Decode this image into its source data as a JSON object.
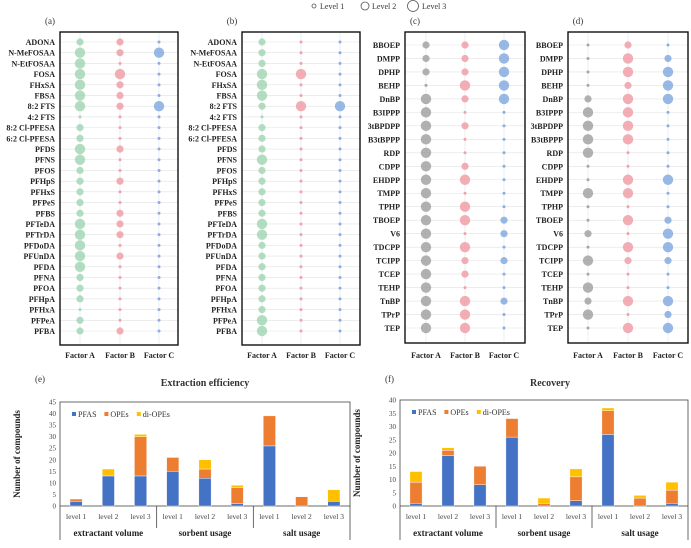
{
  "legend": {
    "level1": "Level 1",
    "level2": "Level 2",
    "level3": "Level 3"
  },
  "colors": {
    "factorA_pfas": "#9fd5b0",
    "factorA_ope": "#9e9e9e",
    "factorB": "#f09aa2",
    "factorC": "#7ea6de",
    "PFAS": "#4472c4",
    "OPEs": "#ed7d31",
    "di-OPEs": "#ffc000"
  },
  "chart_data": [
    {
      "type": "scatter",
      "panel": "(a)",
      "subtype": "bubble",
      "factors": [
        "Factor A",
        "Factor B",
        "Factor C"
      ],
      "compounds": [
        "ADONA",
        "N-MeFOSAA",
        "N-EtFOSAA",
        "FOSA",
        "FHxSA",
        "FBSA",
        "8:2 FTS",
        "4:2 FTS",
        "8:2 Cl-PFESA",
        "6:2 Cl-PFESA",
        "PFDS",
        "PFNS",
        "PFOS",
        "PFHpS",
        "PFHxS",
        "PFPeS",
        "PFBS",
        "PFTeDA",
        "PFTrDA",
        "PFDoDA",
        "PFUnDA",
        "PFDA",
        "PFNA",
        "PFOA",
        "PFHpA",
        "PFHxA",
        "PFPeA",
        "PFBA"
      ],
      "levels": {
        "Factor A": [
          2,
          3,
          3,
          3,
          3,
          3,
          3,
          1,
          2,
          2,
          3,
          3,
          2,
          2,
          2,
          2,
          2,
          3,
          3,
          3,
          3,
          3,
          2,
          2,
          2,
          1,
          2,
          2
        ],
        "Factor B": [
          2,
          2,
          1,
          3,
          2,
          2,
          2,
          1,
          1,
          1,
          2,
          1,
          1,
          2,
          1,
          1,
          2,
          2,
          2,
          1,
          2,
          1,
          1,
          1,
          1,
          1,
          1,
          2
        ],
        "Factor C": [
          1,
          3,
          1,
          1,
          1,
          1,
          3,
          1,
          1,
          1,
          1,
          1,
          1,
          1,
          1,
          1,
          1,
          1,
          1,
          1,
          1,
          1,
          1,
          1,
          1,
          1,
          1,
          1
        ]
      }
    },
    {
      "type": "scatter",
      "panel": "(b)",
      "subtype": "bubble",
      "factors": [
        "Factor A",
        "Factor B",
        "Factor C"
      ],
      "compounds": [
        "ADONA",
        "N-MeFOSAA",
        "N-EtFOSAA",
        "FOSA",
        "FHxSA",
        "FBSA",
        "8:2 FTS",
        "4:2 FTS",
        "8:2 Cl-PFESA",
        "6:2 Cl-PFESA",
        "PFDS",
        "PFNS",
        "PFOS",
        "PFHpS",
        "PFHxS",
        "PFPeS",
        "PFBS",
        "PFTeDA",
        "PFTrDA",
        "PFDoDA",
        "PFUnDA",
        "PFDA",
        "PFNA",
        "PFOA",
        "PFHpA",
        "PFHxA",
        "PFPeA",
        "PFBA"
      ],
      "levels": {
        "Factor A": [
          2,
          2,
          2,
          3,
          3,
          3,
          2,
          1,
          2,
          2,
          2,
          3,
          2,
          2,
          2,
          2,
          2,
          3,
          3,
          2,
          2,
          2,
          2,
          2,
          2,
          2,
          3,
          3
        ],
        "Factor B": [
          1,
          1,
          1,
          3,
          1,
          1,
          3,
          1,
          1,
          1,
          1,
          1,
          1,
          1,
          1,
          1,
          1,
          1,
          1,
          1,
          1,
          1,
          1,
          1,
          1,
          1,
          1,
          1
        ],
        "Factor C": [
          1,
          1,
          1,
          1,
          1,
          1,
          3,
          1,
          1,
          1,
          1,
          1,
          1,
          1,
          1,
          1,
          1,
          1,
          1,
          1,
          1,
          1,
          1,
          1,
          1,
          1,
          1,
          1
        ]
      }
    },
    {
      "type": "scatter",
      "panel": "(c)",
      "subtype": "bubble",
      "factors": [
        "Factor A",
        "Factor B",
        "Factor C"
      ],
      "compounds": [
        "BBOEP",
        "DMPP",
        "DPHP",
        "BEHP",
        "DnBP",
        "B3IPPP",
        "3tBPDPP",
        "B3tBPPP",
        "RDP",
        "CDPP",
        "EHDPP",
        "TMPP",
        "TPHP",
        "TBOEP",
        "V6",
        "TDCPP",
        "TCIPP",
        "TCEP",
        "TEHP",
        "TnBP",
        "TPrP",
        "TEP"
      ],
      "levels": {
        "Factor A": [
          2,
          2,
          2,
          1,
          3,
          3,
          3,
          3,
          3,
          3,
          3,
          3,
          3,
          3,
          3,
          3,
          3,
          3,
          3,
          3,
          3,
          3
        ],
        "Factor B": [
          2,
          2,
          2,
          3,
          2,
          1,
          2,
          1,
          1,
          2,
          3,
          1,
          3,
          3,
          1,
          3,
          2,
          2,
          1,
          3,
          3,
          3
        ],
        "Factor C": [
          3,
          3,
          3,
          3,
          3,
          1,
          1,
          1,
          1,
          1,
          1,
          1,
          1,
          2,
          2,
          1,
          2,
          1,
          1,
          2,
          1,
          1
        ]
      }
    },
    {
      "type": "scatter",
      "panel": "(d)",
      "subtype": "bubble",
      "factors": [
        "Factor A",
        "Factor B",
        "Factor C"
      ],
      "compounds": [
        "BBOEP",
        "DMPP",
        "DPHP",
        "BEHP",
        "DnBP",
        "B3IPPP",
        "3tBPDPP",
        "B3tBPPP",
        "RDP",
        "CDPP",
        "EHDPP",
        "TMPP",
        "TPHP",
        "TBOEP",
        "V6",
        "TDCPP",
        "TCIPP",
        "TCEP",
        "TEHP",
        "TnBP",
        "TPrP",
        "TEP"
      ],
      "levels": {
        "Factor A": [
          1,
          1,
          1,
          1,
          2,
          3,
          3,
          3,
          3,
          1,
          1,
          3,
          1,
          1,
          2,
          1,
          3,
          1,
          3,
          2,
          3,
          1
        ],
        "Factor B": [
          2,
          3,
          3,
          2,
          3,
          3,
          3,
          3,
          1,
          1,
          3,
          3,
          1,
          3,
          1,
          3,
          2,
          1,
          1,
          3,
          1,
          3
        ],
        "Factor C": [
          1,
          2,
          3,
          3,
          3,
          1,
          1,
          1,
          1,
          1,
          3,
          1,
          1,
          2,
          3,
          3,
          2,
          1,
          1,
          3,
          2,
          3
        ]
      }
    },
    {
      "type": "bar",
      "panel": "(e)",
      "stacked": true,
      "title": "Extraction efficiency",
      "ylabel": "Number of compounds",
      "ylim": [
        0,
        45
      ],
      "yticks": [
        0,
        5,
        10,
        15,
        20,
        25,
        30,
        35,
        40,
        45
      ],
      "groups": [
        "extractant volume",
        "sorbent usage",
        "salt usage"
      ],
      "categories": [
        "level 1",
        "level 2",
        "level 3",
        "level 1",
        "level 2",
        "level 3",
        "level 1",
        "level 2",
        "level 3"
      ],
      "series": [
        {
          "name": "PFAS",
          "values": [
            2,
            13,
            13,
            15,
            12,
            1,
            26,
            0,
            2
          ]
        },
        {
          "name": "OPEs",
          "values": [
            1,
            0,
            17,
            6,
            4,
            7,
            13,
            4,
            0
          ]
        },
        {
          "name": "di-OPEs",
          "values": [
            0,
            3,
            1,
            0,
            4,
            1,
            0,
            0,
            5
          ]
        }
      ],
      "legend": "top-left"
    },
    {
      "type": "bar",
      "panel": "(f)",
      "stacked": true,
      "title": "Recovery",
      "ylabel": "Number of compounds",
      "ylim": [
        0,
        40
      ],
      "yticks": [
        0,
        5,
        10,
        15,
        20,
        25,
        30,
        35,
        40
      ],
      "groups": [
        "extractant volume",
        "sorbent usage",
        "salt usage"
      ],
      "categories": [
        "level 1",
        "level 2",
        "level 3",
        "level 1",
        "level 2",
        "level 3",
        "level 1",
        "level 2",
        "level 3"
      ],
      "series": [
        {
          "name": "PFAS",
          "values": [
            1,
            19,
            8,
            26,
            0,
            2,
            27,
            0,
            1
          ]
        },
        {
          "name": "OPEs",
          "values": [
            8,
            2,
            7,
            7,
            1,
            9,
            9,
            3,
            5
          ]
        },
        {
          "name": "di-OPEs",
          "values": [
            4,
            1,
            0,
            0,
            2,
            3,
            1,
            1,
            3
          ]
        }
      ],
      "legend": "top-left"
    }
  ]
}
